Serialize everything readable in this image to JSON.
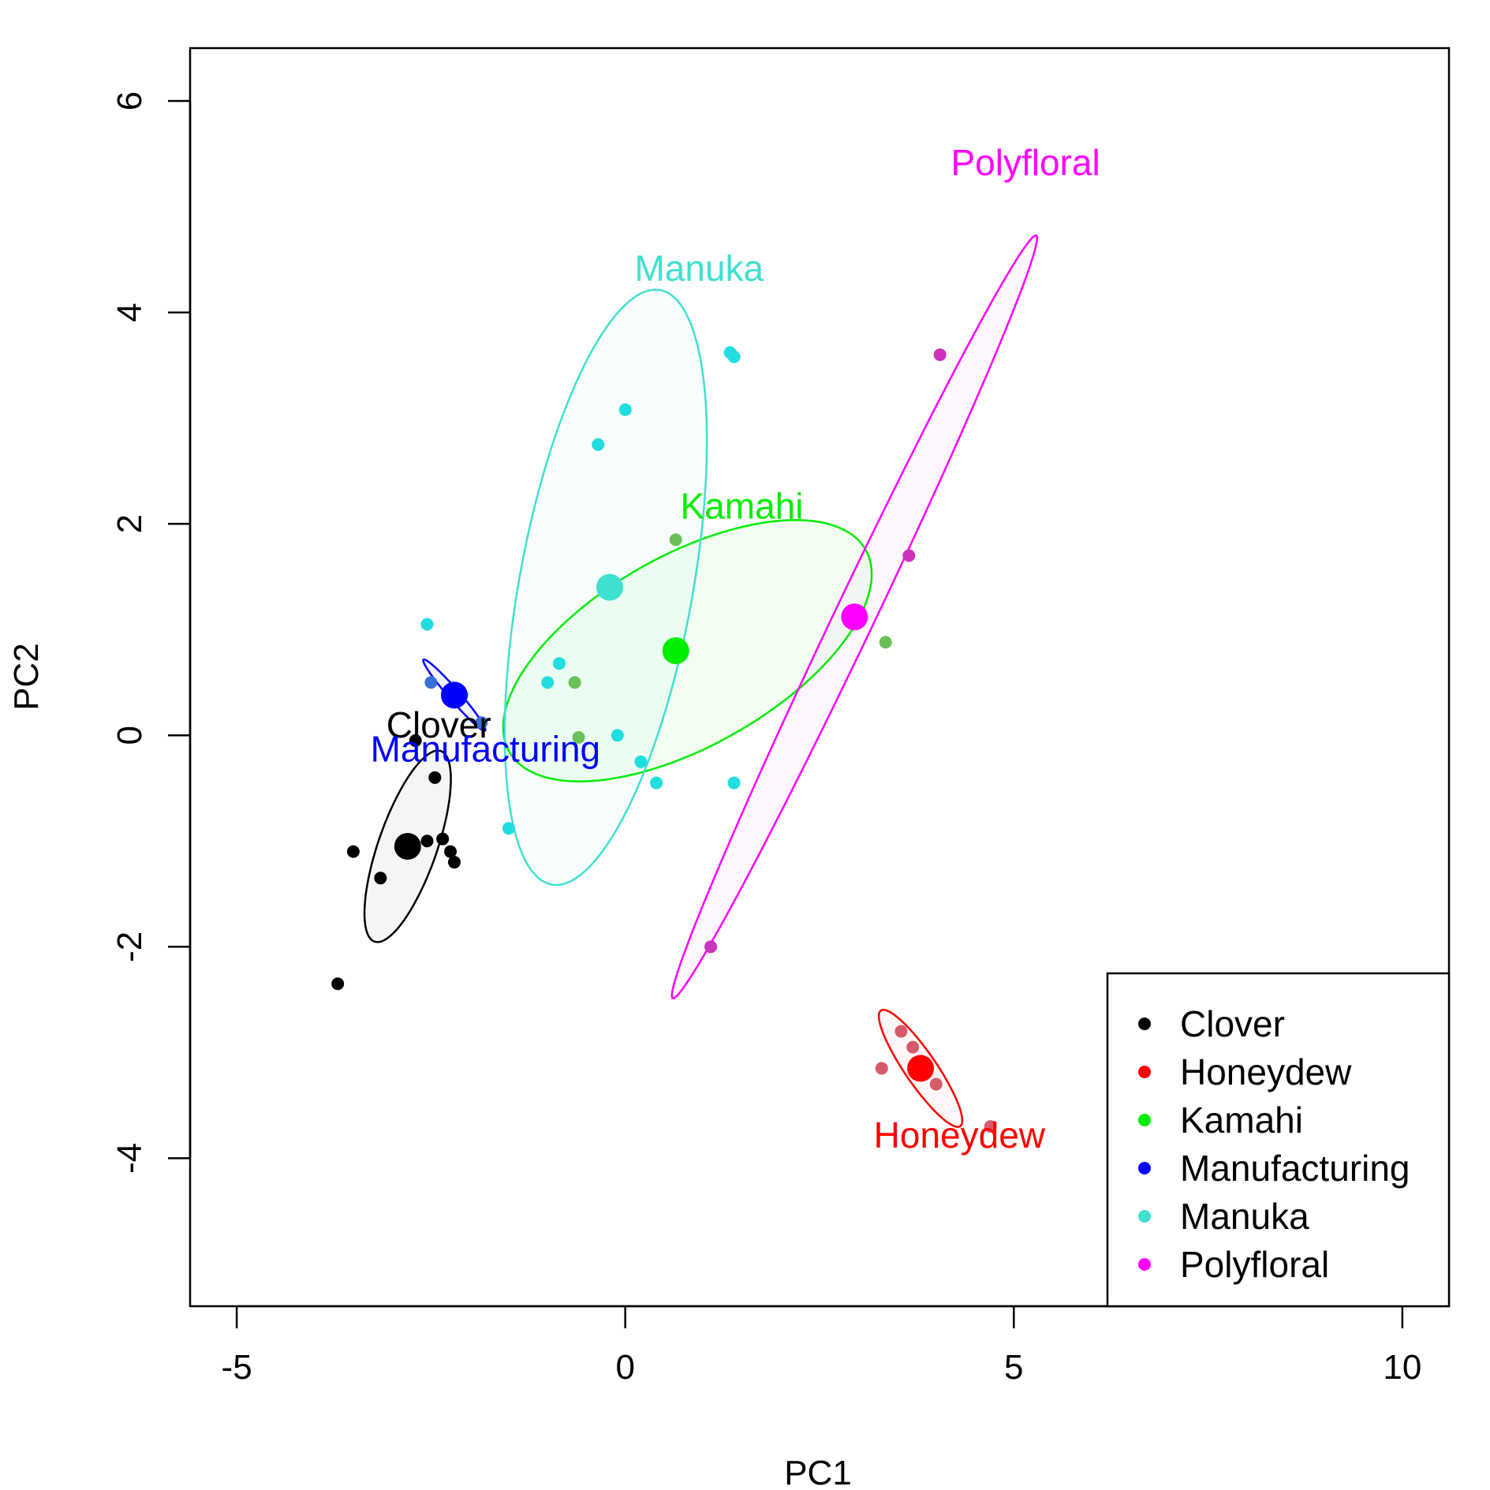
{
  "chart_data": {
    "type": "scatter",
    "xlabel": "PC1",
    "ylabel": "PC2",
    "xlim": [
      -5.6,
      10.6
    ],
    "ylim": [
      -5.4,
      6.5
    ],
    "xticks": [
      -5,
      0,
      5,
      10
    ],
    "yticks": [
      -4,
      -2,
      0,
      2,
      4,
      6
    ],
    "legend_position": "bottom-right",
    "series": [
      {
        "name": "Clover",
        "color": "#000000",
        "point_color": "#000000",
        "fill": "rgba(0,0,0,0.04)",
        "centroid": [
          -2.8,
          -1.05
        ],
        "ellipse": {
          "center": [
            -2.8,
            -1.05
          ],
          "semi_axes": [
            1.0,
            0.36
          ],
          "angle_deg": 63
        },
        "label": "Clover",
        "label_pos": [
          -2.4,
          -0.02
        ],
        "points": [
          [
            -3.7,
            -2.35
          ],
          [
            -3.5,
            -1.1
          ],
          [
            -3.15,
            -1.35
          ],
          [
            -2.7,
            -0.05
          ],
          [
            -2.55,
            -1.0
          ],
          [
            -2.45,
            -0.4
          ],
          [
            -2.35,
            -0.98
          ],
          [
            -2.25,
            -1.1
          ],
          [
            -2.2,
            -1.2
          ]
        ]
      },
      {
        "name": "Honeydew",
        "color": "#ff0000",
        "point_color": "#d85a6a",
        "fill": "rgba(255,0,0,0.03)",
        "centroid": [
          3.8,
          -3.15
        ],
        "ellipse": {
          "center": [
            3.8,
            -3.15
          ],
          "semi_axes": [
            0.75,
            0.18
          ],
          "angle_deg": -46
        },
        "label": "Honeydew",
        "label_pos": [
          4.3,
          -3.9
        ],
        "points": [
          [
            3.3,
            -3.15
          ],
          [
            3.55,
            -2.8
          ],
          [
            3.7,
            -2.95
          ],
          [
            4.0,
            -3.3
          ],
          [
            4.7,
            -3.7
          ]
        ]
      },
      {
        "name": "Kamahi",
        "color": "#00ee00",
        "point_color": "#6abf5a",
        "fill": "rgba(0,230,0,0.05)",
        "centroid": [
          0.65,
          0.8
        ],
        "ellipse": {
          "center": [
            0.8,
            0.8
          ],
          "semi_axes": [
            2.5,
            0.95
          ],
          "angle_deg": 20
        },
        "label": "Kamahi",
        "label_pos": [
          1.5,
          2.05
        ],
        "points": [
          [
            0.65,
            1.85
          ],
          [
            3.35,
            0.88
          ],
          [
            -0.65,
            0.5
          ],
          [
            -0.6,
            -0.02
          ]
        ]
      },
      {
        "name": "Manufacturing",
        "color": "#0000ff",
        "point_color": "#3b6fd8",
        "fill": "rgba(0,0,255,0.05)",
        "centroid": [
          -2.2,
          0.38
        ],
        "ellipse": {
          "center": [
            -2.2,
            0.38
          ],
          "semi_axes": [
            0.52,
            0.06
          ],
          "angle_deg": -40
        },
        "label": "Manufacturing",
        "label_pos": [
          -1.8,
          -0.25
        ],
        "points": [
          [
            -2.5,
            0.5
          ],
          [
            -1.85,
            0.12
          ]
        ]
      },
      {
        "name": "Manuka",
        "color": "#40e0d0",
        "point_color": "#20dde0",
        "fill": "rgba(64,224,208,0.04)",
        "centroid": [
          -0.2,
          1.4
        ],
        "ellipse": {
          "center": [
            -0.25,
            1.4
          ],
          "semi_axes": [
            2.9,
            1.1
          ],
          "angle_deg": 75
        },
        "label": "Manuka",
        "label_pos": [
          0.95,
          4.3
        ],
        "points": [
          [
            1.35,
            3.62
          ],
          [
            1.4,
            3.58
          ],
          [
            0.0,
            3.08
          ],
          [
            -0.35,
            2.75
          ],
          [
            -2.55,
            1.05
          ],
          [
            -0.85,
            0.68
          ],
          [
            -1.0,
            0.5
          ],
          [
            -2.1,
            0.38
          ],
          [
            -0.1,
            0.0
          ],
          [
            0.2,
            -0.25
          ],
          [
            0.4,
            -0.45
          ],
          [
            1.4,
            -0.45
          ],
          [
            -1.5,
            -0.88
          ]
        ]
      },
      {
        "name": "Polyfloral",
        "color": "#ff00ff",
        "point_color": "#cc33bb",
        "fill": "rgba(255,0,255,0.03)",
        "centroid": [
          2.95,
          1.12
        ],
        "ellipse": {
          "center": [
            2.95,
            1.12
          ],
          "semi_axes": [
            4.3,
            0.24
          ],
          "angle_deg": 57
        },
        "label": "Polyfloral",
        "label_pos": [
          5.15,
          5.3
        ],
        "points": [
          [
            4.05,
            3.6
          ],
          [
            3.65,
            1.7
          ],
          [
            1.1,
            -2.0
          ]
        ]
      }
    ]
  }
}
